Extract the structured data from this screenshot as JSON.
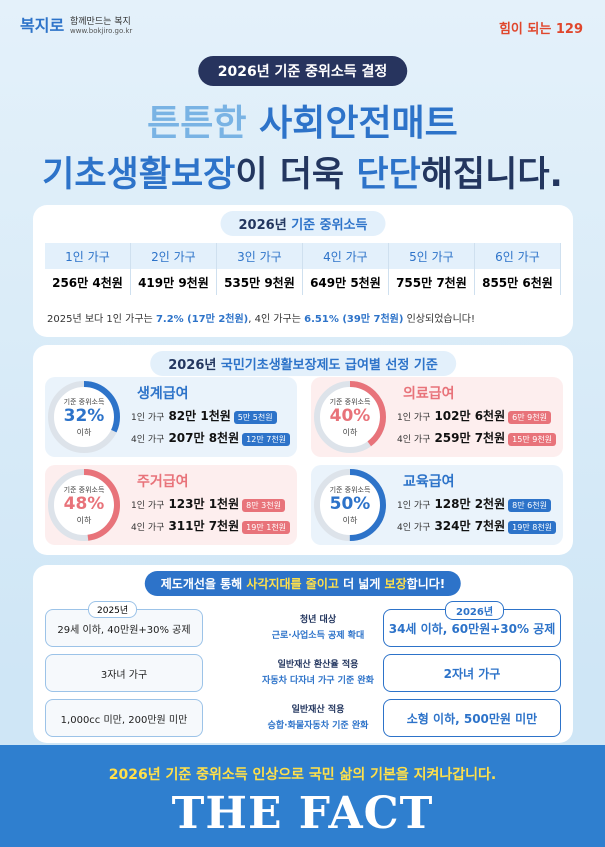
{
  "header": {
    "logo": "복지로",
    "logo_tagline": "함께만드는 복지",
    "logo_url": "www.bokjiro.go.kr",
    "right_logo": "힘이 되는 129"
  },
  "badge": "2026년 기준 중위소득 결정",
  "headline": {
    "line1": [
      "튼튼한 ",
      "사회안전매트"
    ],
    "line2": [
      "기초생활보장",
      "이 더욱 ",
      "단단",
      "해집니다."
    ]
  },
  "median_income": {
    "title": [
      "2026년 ",
      "기준 중위소득"
    ],
    "headers": [
      "1인 가구",
      "2인 가구",
      "3인 가구",
      "4인 가구",
      "5인 가구",
      "6인 가구"
    ],
    "values": [
      "256만 4천원",
      "419만 9천원",
      "535만 9천원",
      "649만 5천원",
      "755만 7천원",
      "855만 6천원"
    ],
    "note": [
      "2025년 보다 1인 가구는 ",
      "7.2% (17만 2천원)",
      ", 4인 가구는 ",
      "6.51% (39만 7천원)",
      " 인상되었습니다!"
    ]
  },
  "benefits": {
    "title": [
      "2026년 ",
      "국민기초생활보장제도 급여별 선정 기준"
    ],
    "ring_caption": "기준 중위소득",
    "below": "이하",
    "items": [
      {
        "name": "생계급여",
        "percent": {
          "value": 32,
          "label": "32%"
        },
        "rows": [
          {
            "household": "1인 가구",
            "amount": "82만 1천원",
            "increase": "5만 5천원"
          },
          {
            "household": "4인 가구",
            "amount": "207만 8천원",
            "increase": "12만 7천원"
          }
        ]
      },
      {
        "name": "의료급여",
        "percent": {
          "value": 40,
          "label": "40%"
        },
        "rows": [
          {
            "household": "1인 가구",
            "amount": "102만 6천원",
            "increase": "6만 9천원"
          },
          {
            "household": "4인 가구",
            "amount": "259만 7천원",
            "increase": "15만 9천원"
          }
        ]
      },
      {
        "name": "주거급여",
        "percent": {
          "value": 48,
          "label": "48%"
        },
        "rows": [
          {
            "household": "1인 가구",
            "amount": "123만 1천원",
            "increase": "8만 3천원"
          },
          {
            "household": "4인 가구",
            "amount": "311만 7천원",
            "increase": "19만 1천원"
          }
        ]
      },
      {
        "name": "교육급여",
        "percent": {
          "value": 50,
          "label": "50%"
        },
        "rows": [
          {
            "household": "1인 가구",
            "amount": "128만 2천원",
            "increase": "8만 6천원"
          },
          {
            "household": "4인 가구",
            "amount": "324만 7천원",
            "increase": "19만 8천원"
          }
        ]
      }
    ]
  },
  "improvements": {
    "title": [
      "제도개선을 통해 ",
      "사각지대를 줄이고",
      " 더 넓게 ",
      "보장",
      "합니다!"
    ],
    "before_label": "2025년",
    "after_label": "2026년",
    "rows": [
      {
        "before": "29세 이하, 40만원+30% 공제",
        "change": [
          "청년 대상",
          "근로·사업소득 공제 확대"
        ],
        "after": "34세 이하, 60만원+30% 공제"
      },
      {
        "before": "3자녀 가구",
        "change": [
          "일반재산 환산율 적용",
          "자동차 다자녀 가구 기준 완화"
        ],
        "after": "2자녀 가구"
      },
      {
        "before": "1,000cc 미만, 200만원 미만",
        "change": [
          "일반재산 적용",
          "승합·화물자동차 기준 완화"
        ],
        "after": "소형 이하, 500만원 미만"
      }
    ]
  },
  "footer": "2026년 기준 중위소득 인상으로 국민 삶의 기본을 지켜나갑니다.",
  "watermark": "THE FACT"
}
